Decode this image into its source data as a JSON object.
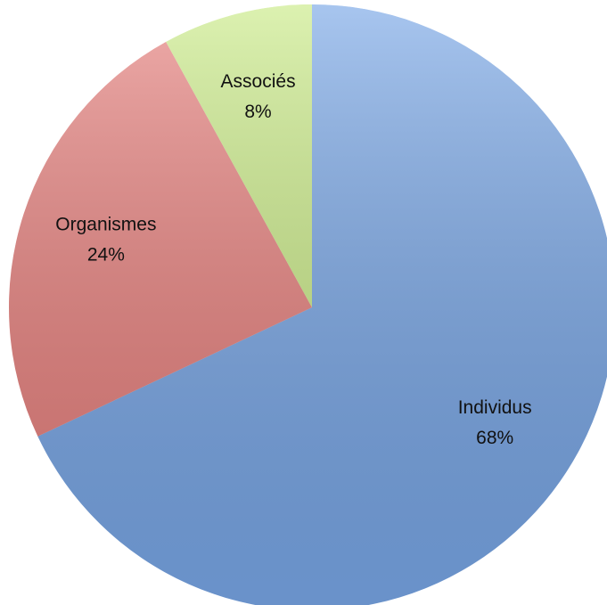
{
  "chart_data": {
    "type": "pie",
    "categories": [
      "Individus",
      "Organismes",
      "Associés"
    ],
    "values": [
      68,
      24,
      8
    ],
    "value_labels": [
      "68%",
      "24%",
      "8%"
    ],
    "colors": [
      "#78a6e6",
      "#e77f7c",
      "#c9ea86"
    ]
  }
}
